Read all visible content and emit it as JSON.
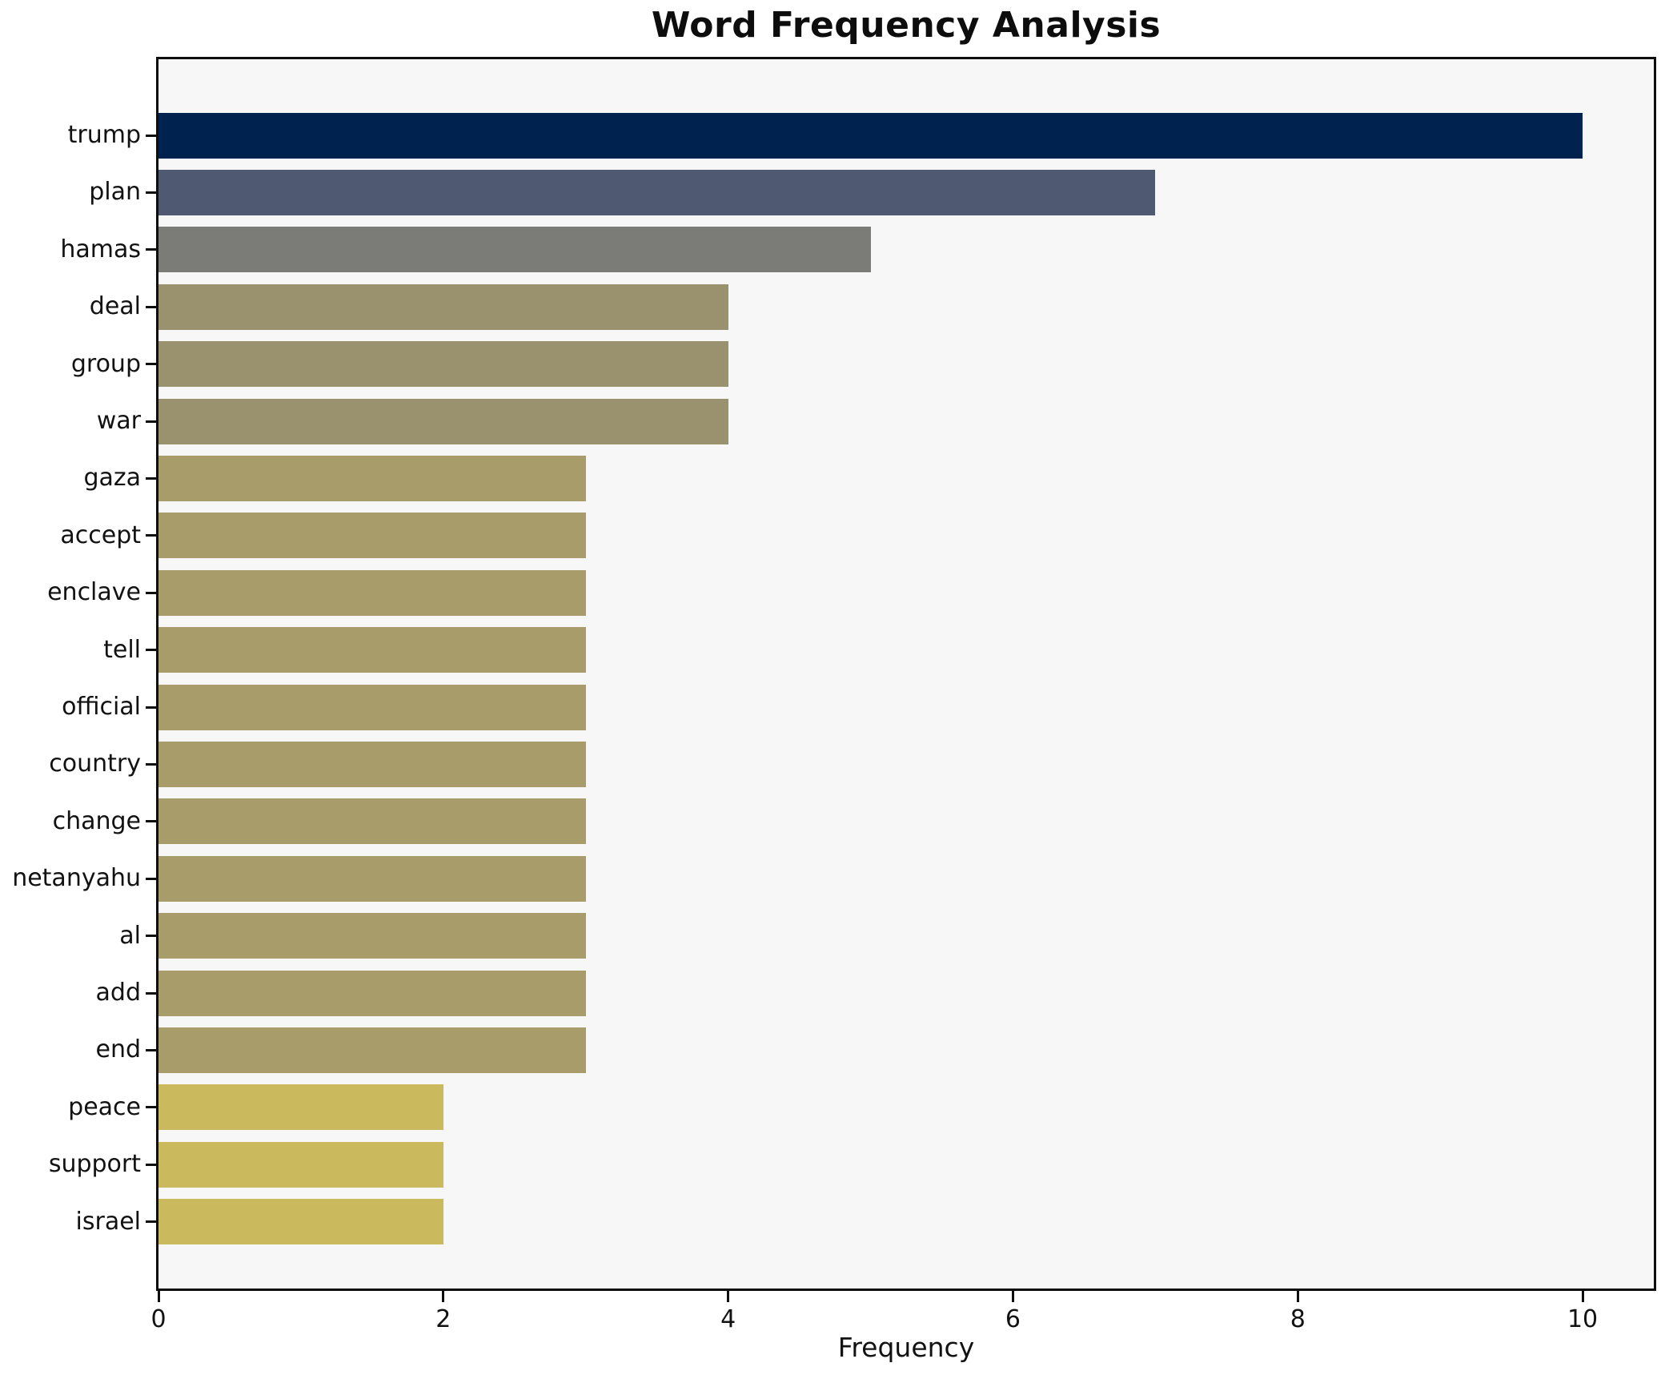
{
  "chart_data": {
    "type": "bar",
    "orientation": "horizontal",
    "title": "Word Frequency Analysis",
    "xlabel": "Frequency",
    "ylabel": "",
    "xlim": [
      0,
      10.5
    ],
    "xticks": [
      0,
      2,
      4,
      6,
      8,
      10
    ],
    "grid": false,
    "legend": "none",
    "plot_background": "#f7f7f8",
    "figure_background": "#ffffff",
    "colormap": "cividis",
    "categories": [
      "trump",
      "plan",
      "hamas",
      "deal",
      "group",
      "war",
      "gaza",
      "accept",
      "enclave",
      "tell",
      "official",
      "country",
      "change",
      "netanyahu",
      "al",
      "add",
      "end",
      "peace",
      "support",
      "israel"
    ],
    "values": [
      10,
      7,
      5,
      4,
      4,
      4,
      3,
      3,
      3,
      3,
      3,
      3,
      3,
      3,
      3,
      3,
      3,
      2,
      2,
      2
    ],
    "bar_colors": [
      "#00224e",
      "#4f5a72",
      "#7b7b78",
      "#9a916f",
      "#9a916f",
      "#9a916f",
      "#a89d6a",
      "#a89d6a",
      "#a89d6a",
      "#a89d6a",
      "#a89d6a",
      "#a89d6a",
      "#a89d6a",
      "#a89d6a",
      "#a89d6a",
      "#a89d6a",
      "#a89d6a",
      "#cbb95e",
      "#cbb95e",
      "#cbb95e"
    ]
  }
}
